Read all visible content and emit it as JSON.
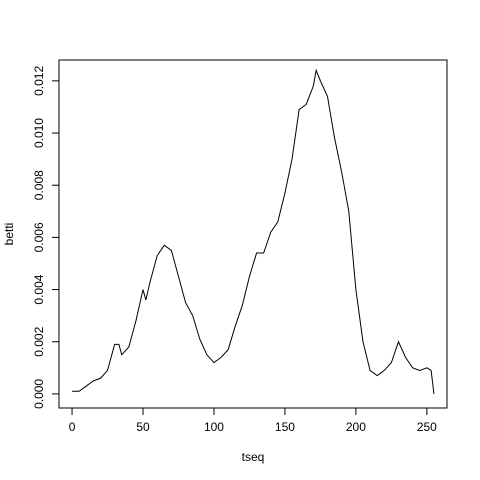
{
  "chart_data": {
    "type": "line",
    "x_label": "tseq",
    "y_label": "betti",
    "x": [
      0,
      5,
      10,
      15,
      20,
      25,
      30,
      33,
      35,
      40,
      45,
      50,
      52,
      55,
      60,
      65,
      70,
      75,
      80,
      85,
      90,
      95,
      100,
      105,
      110,
      115,
      120,
      125,
      130,
      135,
      140,
      145,
      150,
      155,
      160,
      165,
      170,
      172,
      175,
      180,
      185,
      190,
      195,
      200,
      205,
      210,
      215,
      220,
      225,
      230,
      235,
      240,
      245,
      250,
      253,
      255
    ],
    "values": [
      0.0001,
      0.0001,
      0.0003,
      0.0005,
      0.0006,
      0.0009,
      0.0019,
      0.0019,
      0.0015,
      0.0018,
      0.0028,
      0.004,
      0.0036,
      0.0043,
      0.0053,
      0.0057,
      0.0055,
      0.0045,
      0.0035,
      0.003,
      0.0021,
      0.0015,
      0.0012,
      0.0014,
      0.0017,
      0.0026,
      0.0034,
      0.0045,
      0.0054,
      0.0054,
      0.0062,
      0.0066,
      0.0077,
      0.009,
      0.0109,
      0.0111,
      0.0118,
      0.0124,
      0.012,
      0.0114,
      0.0098,
      0.0085,
      0.007,
      0.004,
      0.002,
      0.0009,
      0.0007,
      0.0009,
      0.0012,
      0.002,
      0.0014,
      0.001,
      0.0009,
      0.001,
      0.0009,
      0.0
    ],
    "color": "#000000",
    "xlim": [
      -9.2,
      264.2
    ],
    "xticks": [
      0,
      50,
      100,
      150,
      200,
      250
    ],
    "ylim": [
      -0.00054,
      0.0128
    ],
    "yticks": [
      {
        "value": 0,
        "label": "0.000"
      },
      {
        "value": 0.002,
        "label": "0.002"
      },
      {
        "value": 0.004,
        "label": "0.004"
      },
      {
        "value": 0.006,
        "label": "0.006"
      },
      {
        "value": 0.008,
        "label": "0.008"
      },
      {
        "value": 0.01,
        "label": "0.010"
      },
      {
        "value": 0.012,
        "label": "0.012"
      }
    ]
  }
}
